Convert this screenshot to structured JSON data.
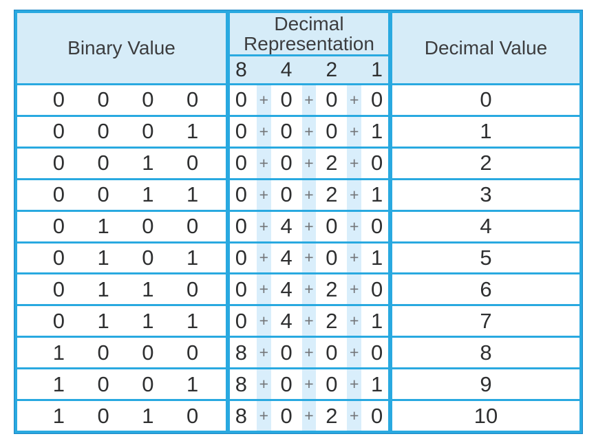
{
  "table": {
    "headers": {
      "binary": "Binary Value",
      "decimal_representation": "Decimal Representation",
      "weights": [
        "8",
        "4",
        "2",
        "1"
      ],
      "decimal_value": "Decimal Value"
    },
    "symbols": {
      "plus": "+"
    },
    "rows": [
      {
        "binary": [
          "0",
          "0",
          "0",
          "0"
        ],
        "repr": [
          "0",
          "0",
          "0",
          "0"
        ],
        "decimal": "0"
      },
      {
        "binary": [
          "0",
          "0",
          "0",
          "1"
        ],
        "repr": [
          "0",
          "0",
          "0",
          "1"
        ],
        "decimal": "1"
      },
      {
        "binary": [
          "0",
          "0",
          "1",
          "0"
        ],
        "repr": [
          "0",
          "0",
          "2",
          "0"
        ],
        "decimal": "2"
      },
      {
        "binary": [
          "0",
          "0",
          "1",
          "1"
        ],
        "repr": [
          "0",
          "0",
          "2",
          "1"
        ],
        "decimal": "3"
      },
      {
        "binary": [
          "0",
          "1",
          "0",
          "0"
        ],
        "repr": [
          "0",
          "4",
          "0",
          "0"
        ],
        "decimal": "4"
      },
      {
        "binary": [
          "0",
          "1",
          "0",
          "1"
        ],
        "repr": [
          "0",
          "4",
          "0",
          "1"
        ],
        "decimal": "5"
      },
      {
        "binary": [
          "0",
          "1",
          "1",
          "0"
        ],
        "repr": [
          "0",
          "4",
          "2",
          "0"
        ],
        "decimal": "6"
      },
      {
        "binary": [
          "0",
          "1",
          "1",
          "1"
        ],
        "repr": [
          "0",
          "4",
          "2",
          "1"
        ],
        "decimal": "7"
      },
      {
        "binary": [
          "1",
          "0",
          "0",
          "0"
        ],
        "repr": [
          "8",
          "0",
          "0",
          "0"
        ],
        "decimal": "8"
      },
      {
        "binary": [
          "1",
          "0",
          "0",
          "1"
        ],
        "repr": [
          "8",
          "0",
          "0",
          "1"
        ],
        "decimal": "9"
      },
      {
        "binary": [
          "1",
          "0",
          "1",
          "0"
        ],
        "repr": [
          "8",
          "0",
          "2",
          "0"
        ],
        "decimal": "10"
      }
    ],
    "colors": {
      "border": "#29a9e0",
      "border_rim": "#1d86c4",
      "header_fill": "#d6ecf8",
      "stripe_fill": "#d9eefb",
      "text": "#2e2f30",
      "plus_sign": "#737578"
    }
  }
}
